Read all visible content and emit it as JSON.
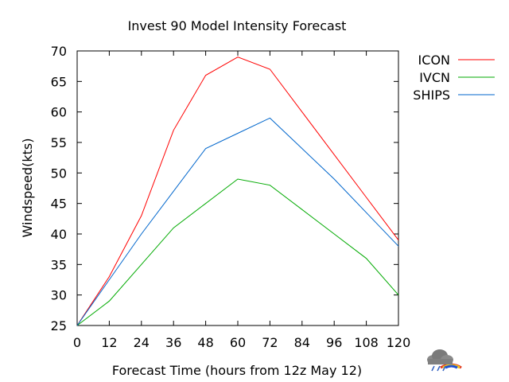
{
  "chart_data": {
    "type": "line",
    "title": "Invest 90 Model Intensity Forecast",
    "xlabel": "Forecast Time (hours from 12z May 12)",
    "ylabel": "Windspeed(kts)",
    "x": [
      0,
      12,
      24,
      36,
      48,
      60,
      72,
      84,
      96,
      108,
      120
    ],
    "xticks": [
      0,
      12,
      24,
      36,
      48,
      60,
      72,
      84,
      96,
      108,
      120
    ],
    "yticks": [
      25,
      30,
      35,
      40,
      45,
      50,
      55,
      60,
      65,
      70
    ],
    "xlim": [
      0,
      120
    ],
    "ylim": [
      25,
      70
    ],
    "grid": false,
    "legend_position": "right",
    "series": [
      {
        "name": "ICON",
        "color": "#ff0000",
        "values": [
          25,
          33,
          43,
          57,
          66,
          69,
          67,
          60,
          53,
          46,
          39
        ]
      },
      {
        "name": "IVCN",
        "color": "#00aa00",
        "values": [
          25,
          29,
          35,
          41,
          45,
          49,
          48,
          44,
          40,
          36,
          30
        ]
      },
      {
        "name": "SHIPS",
        "color": "#0066cc",
        "values": [
          25,
          32.5,
          40,
          47,
          54,
          56.5,
          59,
          54,
          49,
          43.5,
          38
        ]
      }
    ]
  },
  "logo": {
    "icon": "storm-cloud-rainbow-icon"
  }
}
